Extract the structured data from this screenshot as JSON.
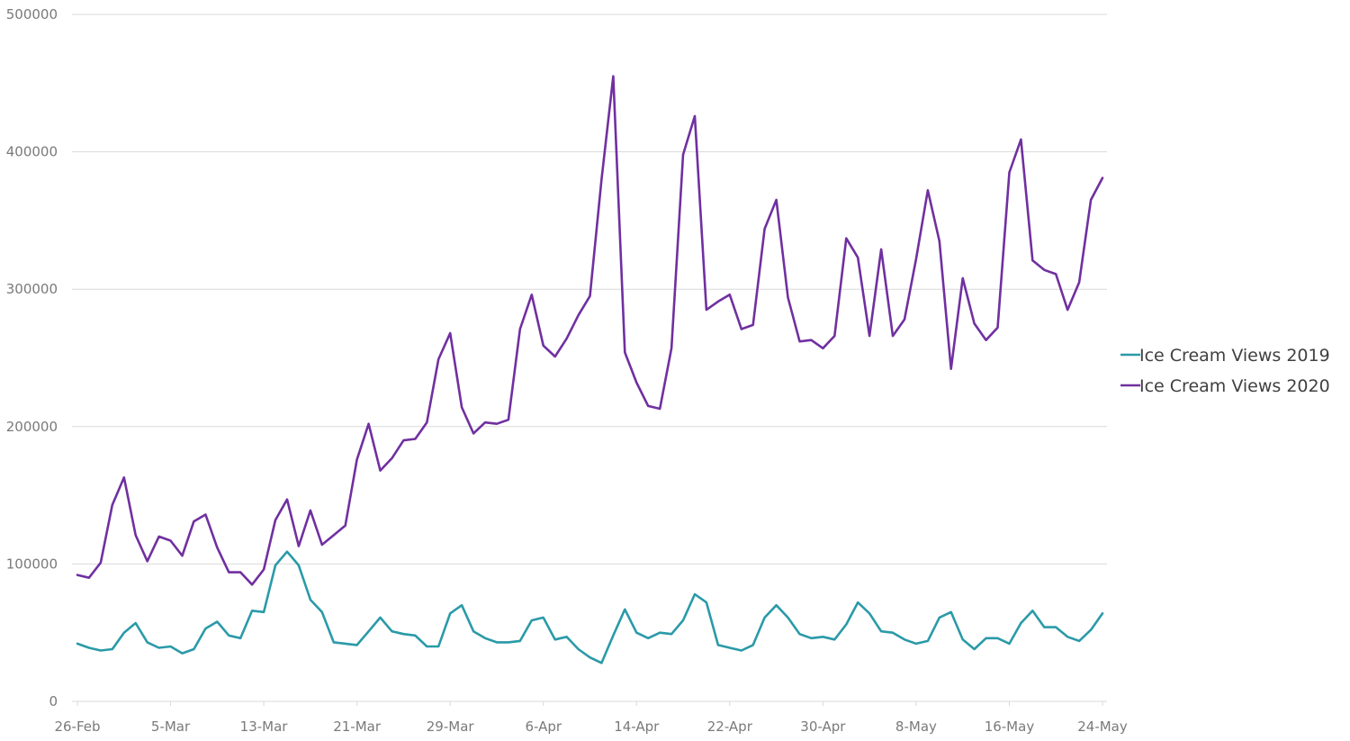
{
  "chart_data": {
    "type": "line",
    "title": "",
    "xlabel": "",
    "ylabel": "",
    "ylim": [
      0,
      500000
    ],
    "y_ticks": [
      0,
      100000,
      200000,
      300000,
      400000,
      500000
    ],
    "y_tick_labels": [
      "0",
      "100000",
      "200000",
      "300000",
      "400000",
      "500000"
    ],
    "x": [
      "26-Feb",
      "27-Feb",
      "28-Feb",
      "29-Feb",
      "1-Mar",
      "2-Mar",
      "3-Mar",
      "4-Mar",
      "5-Mar",
      "6-Mar",
      "7-Mar",
      "8-Mar",
      "9-Mar",
      "10-Mar",
      "11-Mar",
      "12-Mar",
      "13-Mar",
      "14-Mar",
      "15-Mar",
      "16-Mar",
      "17-Mar",
      "18-Mar",
      "19-Mar",
      "20-Mar",
      "21-Mar",
      "22-Mar",
      "23-Mar",
      "24-Mar",
      "25-Mar",
      "26-Mar",
      "27-Mar",
      "28-Mar",
      "29-Mar",
      "30-Mar",
      "31-Mar",
      "1-Apr",
      "2-Apr",
      "3-Apr",
      "4-Apr",
      "5-Apr",
      "6-Apr",
      "7-Apr",
      "8-Apr",
      "9-Apr",
      "10-Apr",
      "11-Apr",
      "12-Apr",
      "13-Apr",
      "14-Apr",
      "15-Apr",
      "16-Apr",
      "17-Apr",
      "18-Apr",
      "19-Apr",
      "20-Apr",
      "21-Apr",
      "22-Apr",
      "23-Apr",
      "24-Apr",
      "25-Apr",
      "26-Apr",
      "27-Apr",
      "28-Apr",
      "29-Apr",
      "30-Apr",
      "1-May",
      "2-May",
      "3-May",
      "4-May",
      "5-May",
      "6-May",
      "7-May",
      "8-May",
      "9-May",
      "10-May",
      "11-May",
      "12-May",
      "13-May",
      "14-May",
      "15-May",
      "16-May",
      "17-May",
      "18-May",
      "19-May",
      "20-May",
      "21-May",
      "22-May",
      "23-May",
      "24-May"
    ],
    "x_tick_labels": [
      "26-Feb",
      "5-Mar",
      "13-Mar",
      "21-Mar",
      "29-Mar",
      "6-Apr",
      "14-Apr",
      "22-Apr",
      "30-Apr",
      "8-May",
      "16-May",
      "24-May"
    ],
    "x_tick_indices": [
      0,
      8,
      16,
      24,
      32,
      40,
      48,
      56,
      64,
      72,
      80,
      88
    ],
    "grid": true,
    "legend_position": "right",
    "series": [
      {
        "name": "Ice Cream Views 2019",
        "color": "#2a9aa8",
        "values": [
          42000,
          39000,
          37000,
          38000,
          50000,
          57000,
          43000,
          39000,
          40000,
          35000,
          38000,
          53000,
          58000,
          48000,
          46000,
          66000,
          65000,
          99000,
          109000,
          99000,
          74000,
          65000,
          43000,
          42000,
          41000,
          51000,
          61000,
          51000,
          49000,
          48000,
          40000,
          40000,
          64000,
          70000,
          51000,
          46000,
          43000,
          43000,
          44000,
          59000,
          61000,
          45000,
          47000,
          38000,
          32000,
          28000,
          48000,
          67000,
          50000,
          46000,
          50000,
          49000,
          59000,
          78000,
          72000,
          41000,
          39000,
          37000,
          41000,
          61000,
          70000,
          61000,
          49000,
          46000,
          47000,
          45000,
          56000,
          72000,
          64000,
          51000,
          50000,
          45000,
          42000,
          44000,
          61000,
          65000,
          45000,
          38000,
          46000,
          46000,
          42000,
          57000,
          66000,
          54000,
          54000,
          47000,
          44000,
          52000,
          64000
        ]
      },
      {
        "name": "Ice Cream Views 2020",
        "color": "#7030a0",
        "values": [
          92000,
          90000,
          101000,
          143000,
          163000,
          121000,
          102000,
          120000,
          117000,
          106000,
          131000,
          136000,
          112000,
          94000,
          94000,
          85000,
          96000,
          132000,
          147000,
          113000,
          139000,
          114000,
          121000,
          128000,
          176000,
          202000,
          168000,
          177000,
          190000,
          191000,
          203000,
          249000,
          268000,
          214000,
          195000,
          203000,
          202000,
          205000,
          271000,
          296000,
          259000,
          251000,
          264000,
          281000,
          295000,
          380000,
          455000,
          254000,
          232000,
          215000,
          213000,
          257000,
          398000,
          426000,
          285000,
          291000,
          296000,
          271000,
          274000,
          344000,
          365000,
          294000,
          262000,
          263000,
          257000,
          266000,
          337000,
          323000,
          266000,
          329000,
          266000,
          278000,
          322000,
          372000,
          335000,
          242000,
          308000,
          275000,
          263000,
          272000,
          385000,
          409000,
          321000,
          314000,
          311000,
          285000,
          305000,
          365000,
          381000
        ]
      }
    ]
  }
}
